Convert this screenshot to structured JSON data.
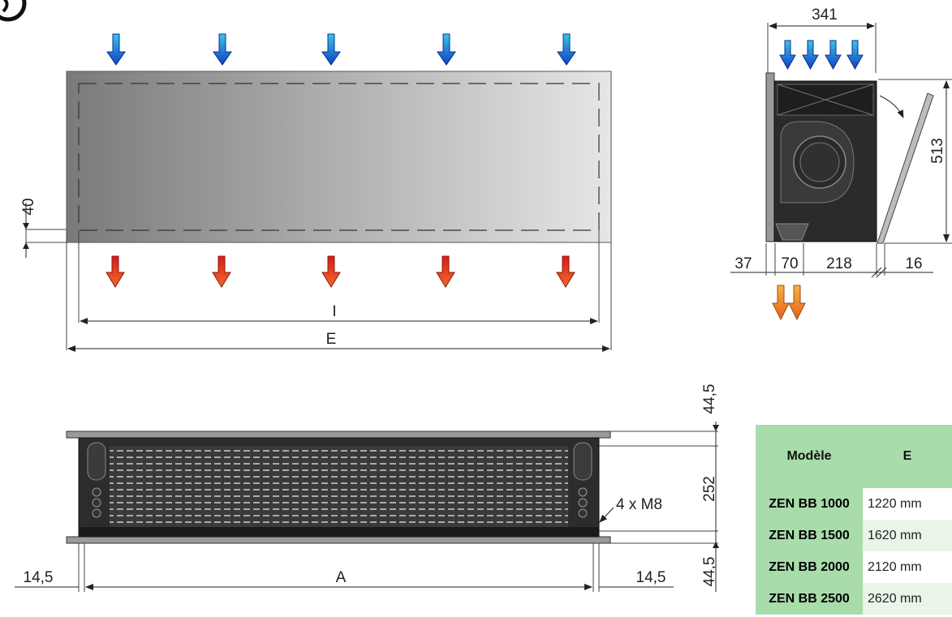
{
  "dimensions": {
    "top_width": "341",
    "height_513": "513",
    "d37": "37",
    "d70": "70",
    "d218": "218",
    "d16": "16",
    "d40": "40",
    "label_I": "I",
    "label_E": "E",
    "d44_top": "44,5",
    "d252": "252",
    "d44_bottom": "44,5",
    "d14_left": "14,5",
    "d14_right": "14,5",
    "label_A": "A",
    "m8_label": "4 x M8"
  },
  "colors": {
    "cold_arrow": "#1f6fd6",
    "hot_arrow": "#e0361b",
    "exhaust_arrow": "#f08a20",
    "table_header": "#a9dcab"
  },
  "table": {
    "headers": [
      "Modèle",
      "E"
    ],
    "rows": [
      {
        "model": "ZEN BB 1000",
        "e": "1220 mm"
      },
      {
        "model": "ZEN BB 1500",
        "e": "1620 mm"
      },
      {
        "model": "ZEN BB 2000",
        "e": "2120 mm"
      },
      {
        "model": "ZEN BB 2500",
        "e": "2620 mm"
      }
    ]
  }
}
